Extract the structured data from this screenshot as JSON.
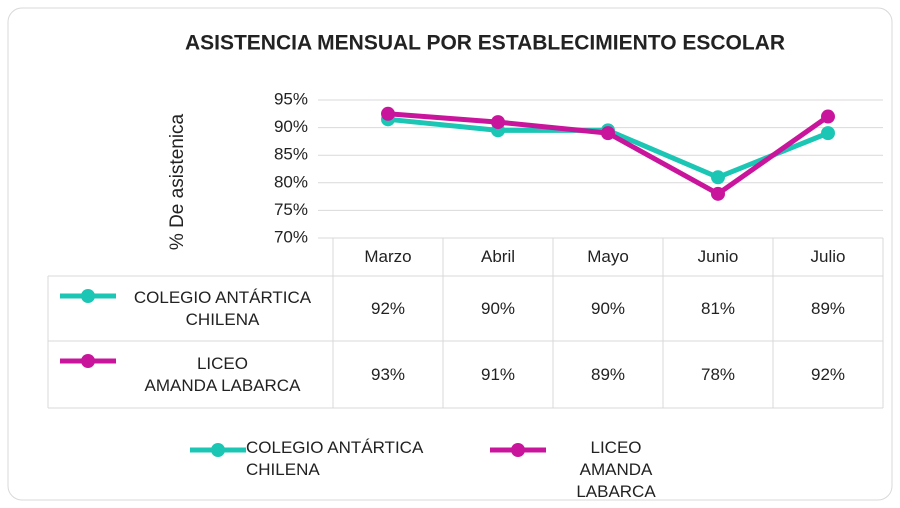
{
  "chart_data": {
    "type": "line",
    "title": "ASISTENCIA MENSUAL POR ESTABLECIMIENTO ESCOLAR",
    "y_label": "% De asistenica",
    "categories": [
      "Marzo",
      "Abril",
      "Mayo",
      "Junio",
      "Julio"
    ],
    "series": [
      {
        "name": "COLEGIO ANTÁRTICA\nCHILENA",
        "color": "#1cc6b4",
        "values": [
          91.5,
          89.5,
          89.5,
          81,
          89
        ],
        "value_labels": [
          "92%",
          "90%",
          "90%",
          "81%",
          "89%"
        ]
      },
      {
        "name": "LICEO\nAMANDA LABARCA",
        "color": "#c9159c",
        "values": [
          92.5,
          91,
          89,
          78,
          92
        ],
        "value_labels": [
          "93%",
          "91%",
          "89%",
          "78%",
          "92%"
        ]
      }
    ],
    "ylim": [
      70,
      95
    ],
    "yticks": [
      {
        "value": 70,
        "label": "70%"
      },
      {
        "value": 75,
        "label": "75%"
      },
      {
        "value": 80,
        "label": "80%"
      },
      {
        "value": 85,
        "label": "85%"
      },
      {
        "value": 90,
        "label": "90%"
      },
      {
        "value": 95,
        "label": "95%"
      }
    ],
    "grid": true,
    "legend": "bottom"
  }
}
